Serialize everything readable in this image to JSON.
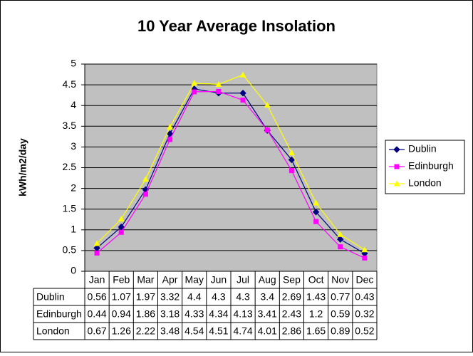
{
  "chart_data": {
    "type": "line",
    "title": "10 Year Average Insolation",
    "y_label": "kWh/m2/day",
    "categories": [
      "Jan",
      "Feb",
      "Mar",
      "Apr",
      "May",
      "Jun",
      "Jul",
      "Aug",
      "Sep",
      "Oct",
      "Nov",
      "Dec"
    ],
    "series": [
      {
        "name": "Dublin",
        "color": "#000080",
        "marker": "diamond",
        "values": [
          0.56,
          1.07,
          1.97,
          3.32,
          4.4,
          4.3,
          4.3,
          3.4,
          2.69,
          1.43,
          0.77,
          0.43
        ]
      },
      {
        "name": "Edinburgh",
        "color": "#FF00FF",
        "marker": "square",
        "values": [
          0.44,
          0.94,
          1.86,
          3.18,
          4.33,
          4.34,
          4.13,
          3.41,
          2.43,
          1.2,
          0.59,
          0.32
        ]
      },
      {
        "name": "London",
        "color": "#FFFF00",
        "marker": "triangle",
        "values": [
          0.67,
          1.26,
          2.22,
          3.48,
          4.54,
          4.51,
          4.74,
          4.01,
          2.86,
          1.65,
          0.89,
          0.52
        ]
      }
    ],
    "ylim": [
      0,
      5
    ],
    "yticks": [
      0,
      0.5,
      1,
      1.5,
      2,
      2.5,
      3,
      3.5,
      4,
      4.5,
      5
    ],
    "grid": true,
    "legend": "right",
    "data_table": true
  }
}
